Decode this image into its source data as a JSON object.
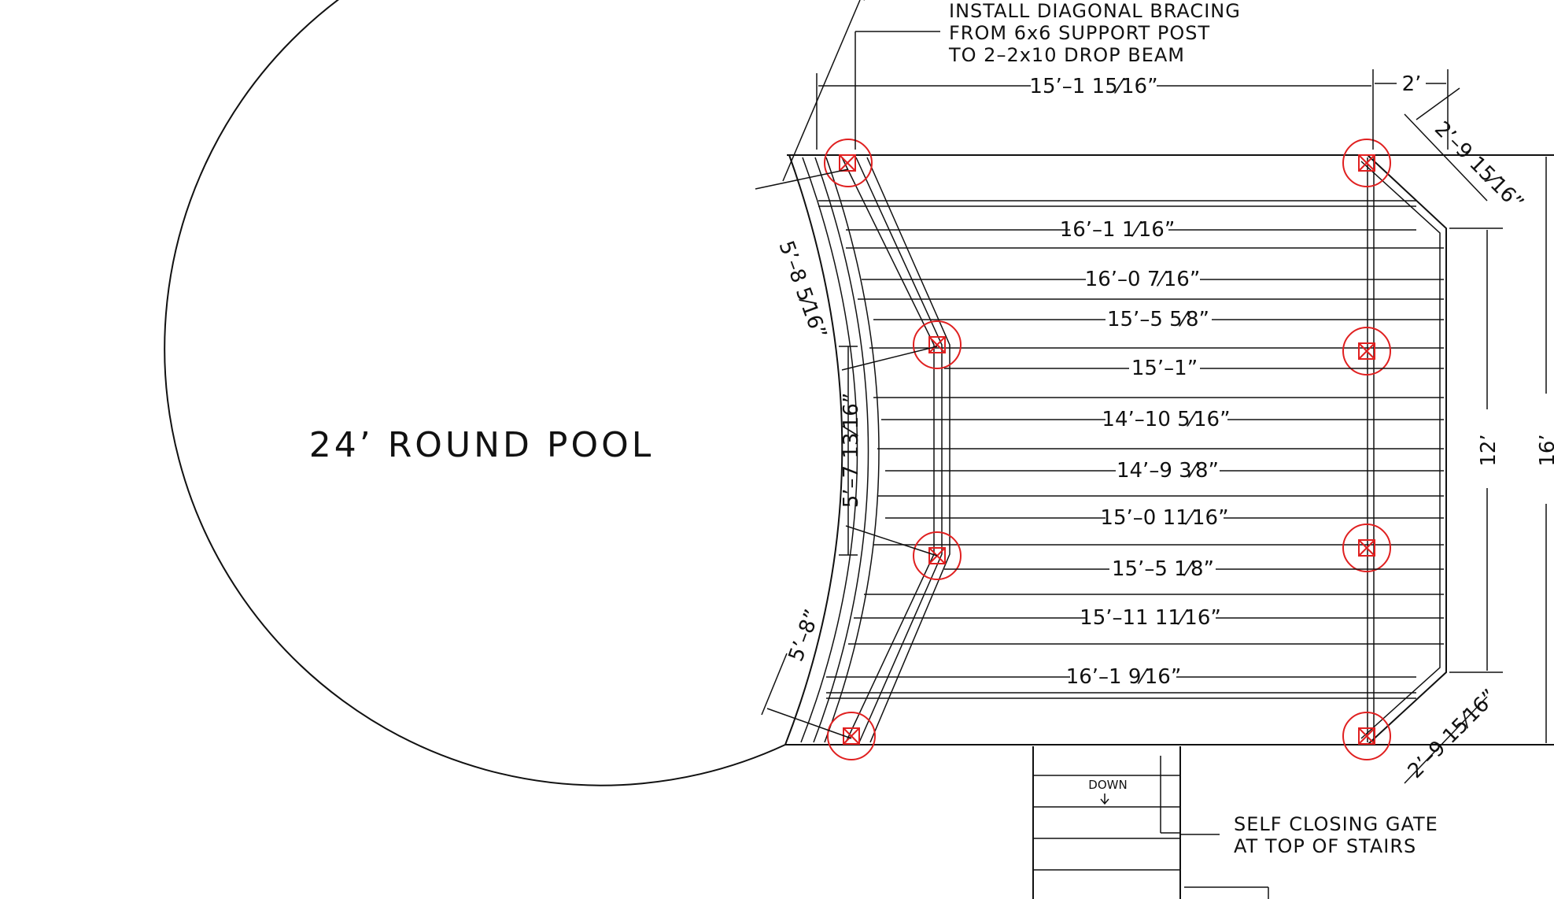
{
  "colors": {
    "line": "#111111",
    "post_marker": "#e02020",
    "background": "#ffffff"
  },
  "pool_label": "24’ ROUND POOL",
  "notes": {
    "bracing": [
      "INSTALL DIAGONAL BRACING",
      "FROM 6x6 SUPPORT POST",
      "TO 2–2x10 DROP BEAM"
    ],
    "gate": [
      "SELF CLOSING GATE",
      "AT TOP OF STAIRS"
    ],
    "stairs_down": "DOWN"
  },
  "dimensions": {
    "top_overall": "15’–1 15⁄16”",
    "top_right": "2’",
    "angle_top": "2’–9 15⁄16”",
    "angle_bottom": "2’–9 15⁄16”",
    "right_inner": "12’",
    "right_overall": "16’",
    "left_upper": "5’–8 5⁄16”",
    "left_middle": "5’–7 13⁄16”",
    "left_lower": "5’–8”"
  },
  "joist_spans": [
    "16’–1 1⁄16”",
    "16’–0 7⁄16”",
    "15’–5 5⁄8”",
    "15’–1”",
    "14’–10 5⁄16”",
    "14’–9 3⁄8”",
    "15’–0 11⁄16”",
    "15’–5 1⁄8”",
    "15’–11 11⁄16”",
    "16’–1 9⁄16”"
  ]
}
